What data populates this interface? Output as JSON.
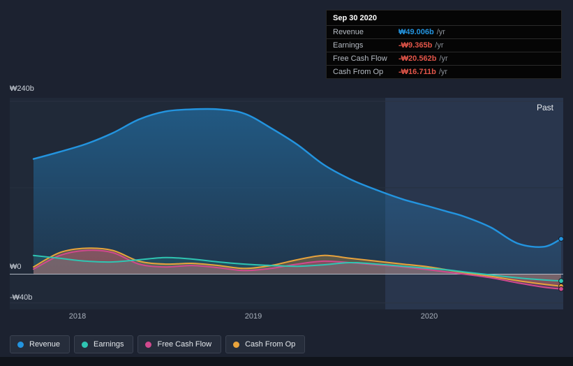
{
  "tooltip": {
    "date": "Sep 30 2020",
    "rows": [
      {
        "label": "Revenue",
        "value": "₩49.006b",
        "suffix": "/yr",
        "color": "#2394df"
      },
      {
        "label": "Earnings",
        "value": "-₩9.365b",
        "suffix": "/yr",
        "color": "#e25549"
      },
      {
        "label": "Free Cash Flow",
        "value": "-₩20.562b",
        "suffix": "/yr",
        "color": "#e25549"
      },
      {
        "label": "Cash From Op",
        "value": "-₩16.711b",
        "suffix": "/yr",
        "color": "#e25549"
      }
    ]
  },
  "past_label": "Past",
  "legend": [
    {
      "label": "Revenue",
      "color": "#2394df"
    },
    {
      "label": "Earnings",
      "color": "#2fc5b2"
    },
    {
      "label": "Free Cash Flow",
      "color": "#d1498e"
    },
    {
      "label": "Cash From Op",
      "color": "#e8a33c"
    }
  ],
  "chart_data": {
    "type": "area",
    "title": "",
    "xlabel": "",
    "ylabel": "",
    "currency_unit": "₩ billions",
    "xlim": [
      2017.615,
      2020.762
    ],
    "ylim": [
      -49,
      245
    ],
    "past_region_start": 2019.75,
    "x_ticks": [
      {
        "value": 2018,
        "label": "2018"
      },
      {
        "value": 2019,
        "label": "2019"
      },
      {
        "value": 2020,
        "label": "2020"
      }
    ],
    "y_ticks": [
      {
        "value": 240,
        "label": "₩240b"
      },
      {
        "value": 0,
        "label": "₩0"
      },
      {
        "value": -40,
        "label": "-₩40b"
      }
    ],
    "x": [
      2017.75,
      2017.9,
      2018.05,
      2018.2,
      2018.35,
      2018.5,
      2018.65,
      2018.8,
      2018.95,
      2019.1,
      2019.25,
      2019.4,
      2019.55,
      2019.7,
      2019.85,
      2020.0,
      2020.1,
      2020.2,
      2020.35,
      2020.5,
      2020.65,
      2020.75
    ],
    "series": [
      {
        "name": "Revenue",
        "color": "#2394df",
        "values": [
          160,
          170,
          181,
          196,
          215,
          226,
          229,
          229,
          223,
          203,
          180,
          152,
          132,
          117,
          104,
          94,
          87,
          80,
          65,
          43,
          38,
          49.0
        ]
      },
      {
        "name": "Earnings",
        "color": "#2fc5b2",
        "values": [
          26,
          22,
          18,
          17,
          20,
          23,
          21,
          17,
          14,
          12,
          11,
          13,
          16,
          14,
          11,
          8,
          6,
          3,
          -1,
          -5,
          -8,
          -9.4
        ]
      },
      {
        "name": "Free Cash Flow",
        "color": "#d1498e",
        "values": [
          7,
          26,
          33,
          30,
          14,
          10,
          12,
          9,
          5,
          8,
          14,
          18,
          16,
          13,
          10,
          6,
          3,
          0,
          -5,
          -12,
          -18,
          -20.6
        ]
      },
      {
        "name": "Cash From Op",
        "color": "#e8a33c",
        "values": [
          10,
          30,
          36,
          33,
          18,
          14,
          15,
          12,
          8,
          12,
          20,
          26,
          22,
          18,
          14,
          10,
          6,
          2,
          -3,
          -9,
          -14,
          -16.7
        ]
      }
    ]
  }
}
